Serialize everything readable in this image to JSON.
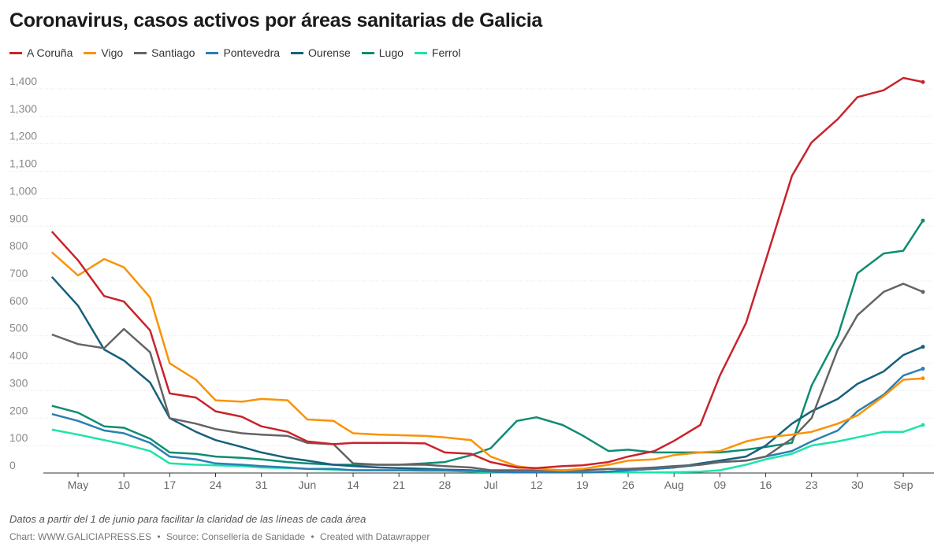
{
  "title": "Coronavirus, casos activos por áreas sanitarias de Galicia",
  "note": "Datos a partir del 1 de junio para facilitar la claridad de las líneas de cada área",
  "credit": {
    "chart": "Chart: WWW.GALICIAPRESS.ES",
    "source": "Source: Consellería de Sanidade",
    "created": "Created with Datawrapper",
    "separator": "•"
  },
  "chart_data": {
    "type": "line",
    "title": "Coronavirus, casos activos por áreas sanitarias de Galicia",
    "xlabel": "",
    "ylabel": "",
    "ylim": [
      0,
      1450
    ],
    "grid": true,
    "legend": "top-left",
    "y_ticks": [
      "0",
      "100",
      "200",
      "300",
      "400",
      "500",
      "600",
      "700",
      "800",
      "900",
      "1,000",
      "1,100",
      "1,200",
      "1,300",
      "1,400"
    ],
    "x_ticks": [
      {
        "label": "May",
        "date": "05-03"
      },
      {
        "label": "10",
        "date": "05-10"
      },
      {
        "label": "17",
        "date": "05-17"
      },
      {
        "label": "24",
        "date": "05-24"
      },
      {
        "label": "31",
        "date": "05-31"
      },
      {
        "label": "Jun",
        "date": "06-07"
      },
      {
        "label": "14",
        "date": "06-14"
      },
      {
        "label": "21",
        "date": "06-21"
      },
      {
        "label": "28",
        "date": "06-28"
      },
      {
        "label": "Jul",
        "date": "07-05"
      },
      {
        "label": "12",
        "date": "07-12"
      },
      {
        "label": "19",
        "date": "07-19"
      },
      {
        "label": "26",
        "date": "07-26"
      },
      {
        "label": "Aug",
        "date": "08-02"
      },
      {
        "label": "09",
        "date": "08-09"
      },
      {
        "label": "16",
        "date": "08-16"
      },
      {
        "label": "23",
        "date": "08-23"
      },
      {
        "label": "30",
        "date": "08-30"
      },
      {
        "label": "Sep",
        "date": "09-06"
      }
    ],
    "x": [
      "04-29",
      "05-03",
      "05-07",
      "05-10",
      "05-14",
      "05-17",
      "05-21",
      "05-24",
      "05-28",
      "05-31",
      "06-04",
      "06-07",
      "06-11",
      "06-14",
      "06-18",
      "06-21",
      "06-25",
      "06-28",
      "07-02",
      "07-05",
      "07-09",
      "07-12",
      "07-16",
      "07-19",
      "07-23",
      "07-26",
      "07-30",
      "08-02",
      "08-06",
      "08-09",
      "08-13",
      "08-16",
      "08-20",
      "08-23",
      "08-27",
      "08-30",
      "09-03",
      "09-06",
      "09-09"
    ],
    "series": [
      {
        "name": "A Coruña",
        "color": "#c9232b",
        "values": [
          880,
          775,
          645,
          625,
          520,
          290,
          275,
          225,
          205,
          170,
          150,
          115,
          105,
          110,
          110,
          110,
          108,
          75,
          70,
          40,
          20,
          18,
          25,
          28,
          40,
          60,
          80,
          117,
          175,
          355,
          547,
          775,
          1083,
          1205,
          1290,
          1370,
          1395,
          1440,
          1425
        ]
      },
      {
        "name": "Vigo",
        "color": "#fa9203",
        "values": [
          805,
          720,
          780,
          750,
          640,
          400,
          340,
          265,
          260,
          270,
          265,
          195,
          190,
          145,
          140,
          138,
          135,
          130,
          120,
          60,
          25,
          15,
          10,
          15,
          30,
          45,
          50,
          65,
          75,
          80,
          115,
          130,
          140,
          150,
          180,
          210,
          280,
          340,
          345
        ]
      },
      {
        "name": "Santiago",
        "color": "#646464",
        "values": [
          505,
          470,
          455,
          525,
          440,
          200,
          180,
          160,
          145,
          140,
          135,
          110,
          105,
          35,
          30,
          30,
          30,
          25,
          20,
          10,
          10,
          10,
          10,
          10,
          15,
          15,
          20,
          25,
          30,
          40,
          45,
          60,
          125,
          200,
          450,
          575,
          660,
          690,
          660
        ]
      },
      {
        "name": "Pontevedra",
        "color": "#2a7fb2",
        "values": [
          215,
          190,
          155,
          145,
          110,
          60,
          50,
          35,
          30,
          25,
          20,
          15,
          15,
          10,
          10,
          10,
          10,
          10,
          8,
          5,
          3,
          3,
          3,
          3,
          5,
          10,
          15,
          20,
          30,
          40,
          45,
          60,
          80,
          115,
          155,
          225,
          285,
          355,
          380
        ]
      },
      {
        "name": "Ourense",
        "color": "#18607d",
        "values": [
          715,
          610,
          450,
          410,
          330,
          200,
          150,
          120,
          95,
          75,
          55,
          45,
          30,
          25,
          20,
          18,
          15,
          12,
          10,
          5,
          2,
          2,
          2,
          2,
          5,
          10,
          15,
          20,
          35,
          45,
          60,
          100,
          180,
          225,
          270,
          325,
          370,
          430,
          460
        ]
      },
      {
        "name": "Lugo",
        "color": "#0e8c72",
        "values": [
          245,
          220,
          170,
          165,
          125,
          75,
          70,
          60,
          55,
          50,
          40,
          35,
          30,
          30,
          30,
          30,
          35,
          40,
          65,
          90,
          190,
          203,
          175,
          137,
          80,
          85,
          75,
          75,
          75,
          75,
          85,
          95,
          110,
          318,
          500,
          728,
          800,
          810,
          920
        ]
      },
      {
        "name": "Ferrol",
        "color": "#1de3aa",
        "values": [
          158,
          140,
          120,
          105,
          80,
          35,
          30,
          28,
          25,
          20,
          18,
          15,
          12,
          10,
          10,
          10,
          8,
          8,
          5,
          3,
          2,
          2,
          2,
          2,
          2,
          2,
          2,
          3,
          5,
          10,
          30,
          50,
          70,
          100,
          115,
          130,
          150,
          150,
          175
        ]
      }
    ]
  }
}
